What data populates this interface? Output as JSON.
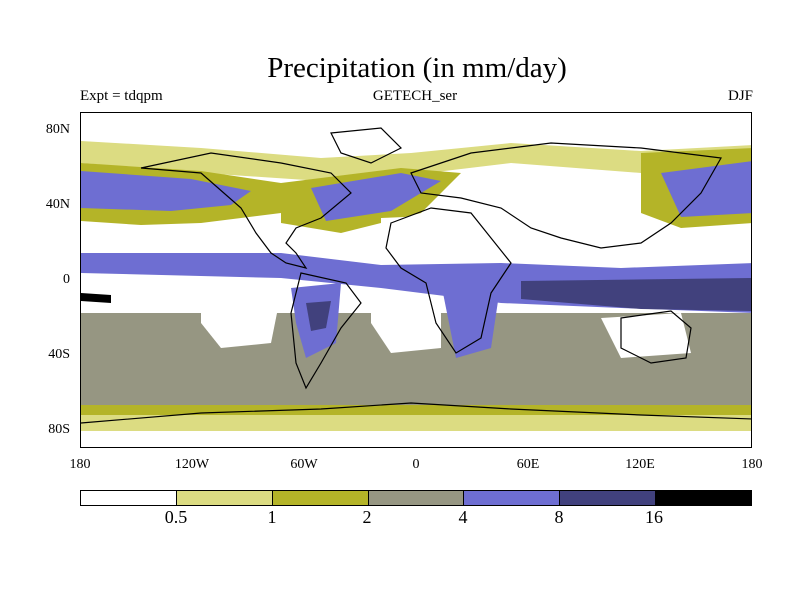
{
  "title": "Precipitation (in mm/day)",
  "subtitle_left": "Expt = tdqpm",
  "subtitle_center": "GETECH_ser",
  "subtitle_right": "DJF",
  "y_ticks": [
    "80N",
    "40N",
    "0",
    "40S",
    "80S"
  ],
  "x_ticks": [
    "180",
    "120W",
    "60W",
    "0",
    "60E",
    "120E",
    "180"
  ],
  "colorbar": {
    "levels": [
      "0.5",
      "1",
      "2",
      "4",
      "8",
      "16"
    ],
    "colors": [
      "#ffffff",
      "#dcdc82",
      "#b4b428",
      "#969682",
      "#6e6ed2",
      "#41417d",
      "#000000"
    ]
  },
  "colors": {
    "dry": "#ffffff",
    "light": "#dcdc82",
    "olive": "#b4b428",
    "grey": "#969682",
    "blue": "#6e6ed2",
    "navy": "#41417d",
    "coast": "#000000"
  }
}
